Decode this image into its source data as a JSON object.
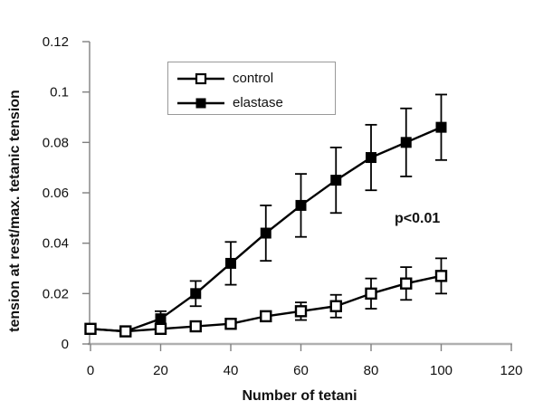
{
  "chart_data": {
    "type": "line",
    "x": [
      0,
      10,
      20,
      30,
      40,
      50,
      60,
      70,
      80,
      90,
      100
    ],
    "series": [
      {
        "name": "control",
        "marker": "open-square",
        "values": [
          0.006,
          0.005,
          0.006,
          0.007,
          0.008,
          0.011,
          0.013,
          0.015,
          0.02,
          0.024,
          0.027
        ],
        "errors": [
          0.001,
          0.001,
          0.001,
          0.001,
          0.0015,
          0.002,
          0.0035,
          0.0045,
          0.006,
          0.0065,
          0.007
        ]
      },
      {
        "name": "elastase",
        "marker": "filled-square",
        "values": [
          0.006,
          0.005,
          0.01,
          0.02,
          0.032,
          0.044,
          0.055,
          0.065,
          0.074,
          0.08,
          0.086
        ],
        "errors": [
          0.001,
          0.001,
          0.003,
          0.005,
          0.0085,
          0.011,
          0.0125,
          0.013,
          0.013,
          0.0135,
          0.013
        ]
      }
    ],
    "xlabel": "Number of tetani",
    "ylabel": "tension at rest/max. tetanic tension",
    "xlim": [
      0,
      120
    ],
    "ylim": [
      0,
      0.12
    ],
    "x_ticks": [
      "0",
      "20",
      "40",
      "60",
      "80",
      "100",
      "120"
    ],
    "y_ticks": [
      "0",
      "0.02",
      "0.04",
      "0.06",
      "0.08",
      "0.1",
      "0.12"
    ],
    "grid": false,
    "legend": {
      "position": "inside-top-center",
      "entries": [
        "control",
        "elastase"
      ]
    },
    "annotation": {
      "text": "p<0.01",
      "x": 87,
      "y": 0.049
    },
    "colors": {
      "series": "#000000",
      "x_axis": "#b0b0b0",
      "y_axis": "#808080",
      "tick": "#808080",
      "text": "#111111",
      "legend_border": "#999999",
      "background": "#ffffff"
    }
  }
}
